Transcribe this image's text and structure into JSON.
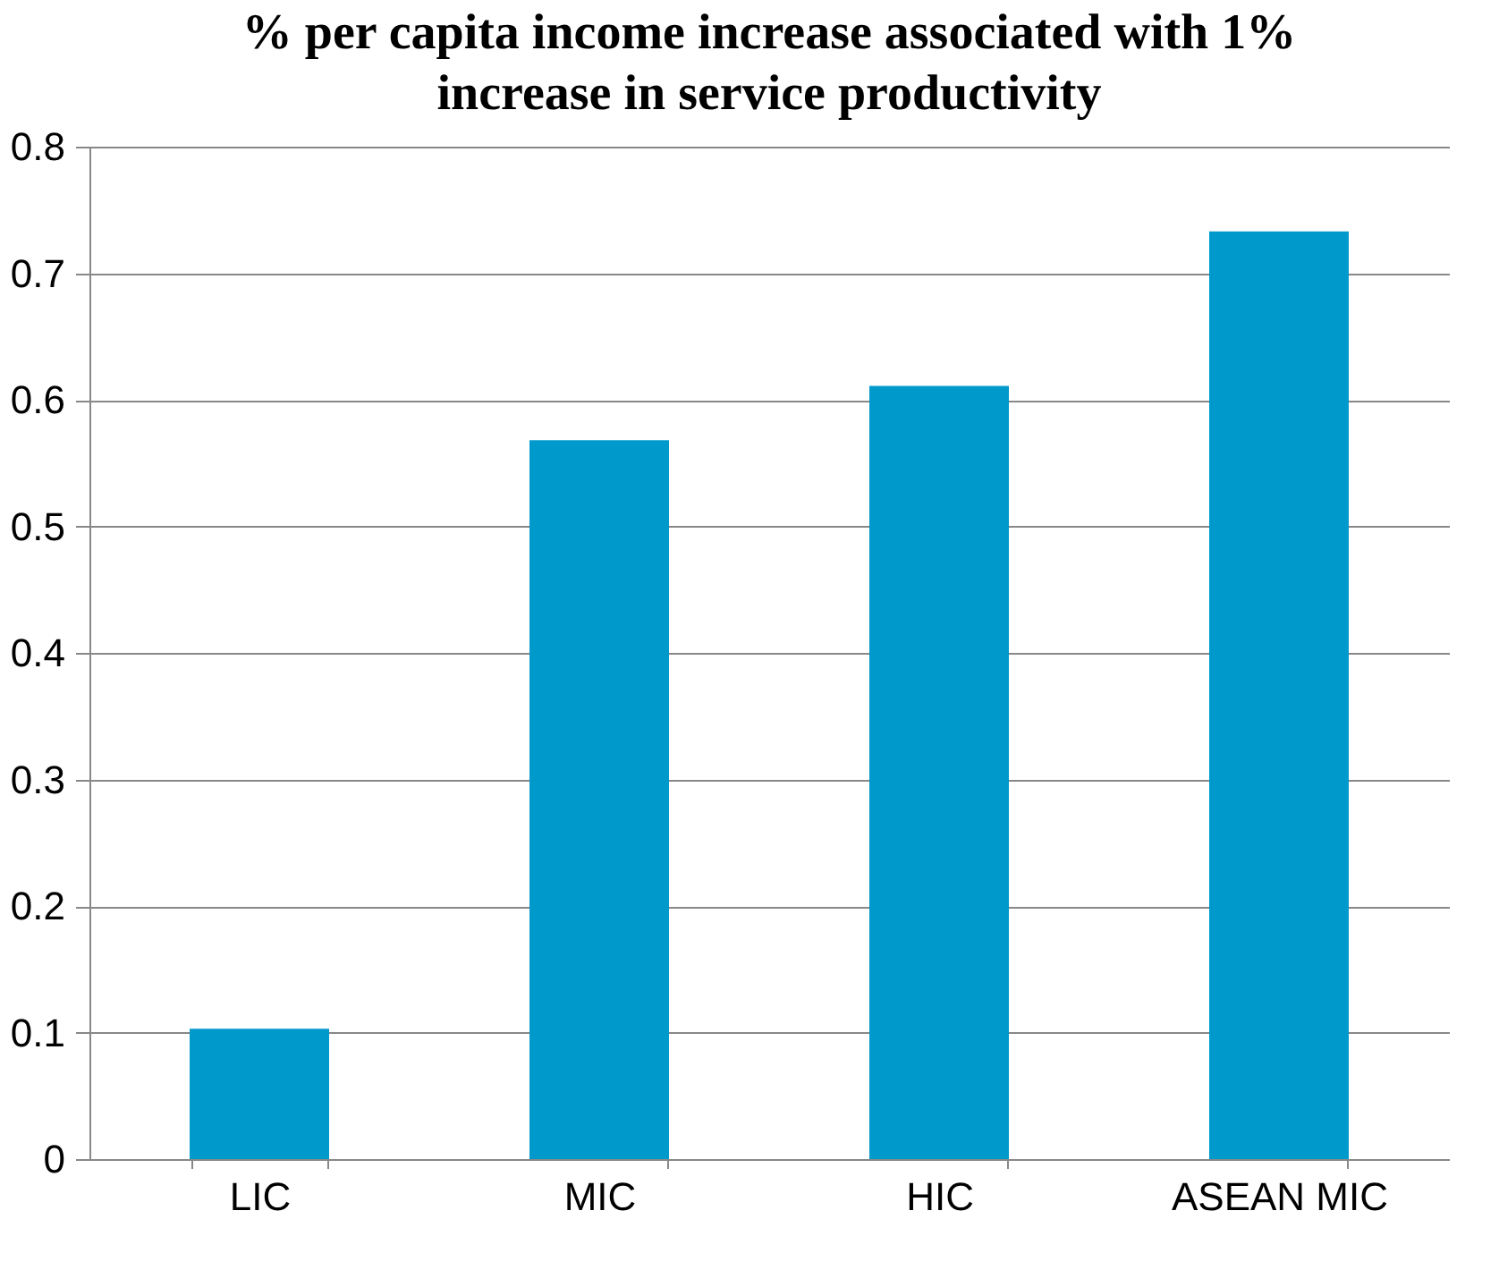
{
  "chart_data": {
    "type": "bar",
    "title": "% per capita income increase associated with 1% increase in service productivity",
    "categories": [
      "LIC",
      "MIC",
      "HIC",
      "ASEAN MIC"
    ],
    "values": [
      0.103,
      0.568,
      0.611,
      0.733
    ],
    "color": "#0099cc",
    "ylim": [
      0,
      0.8
    ],
    "yticks": [
      0,
      0.1,
      0.2,
      0.3,
      0.4,
      0.5,
      0.6,
      0.7,
      0.8
    ],
    "grid": "y"
  }
}
